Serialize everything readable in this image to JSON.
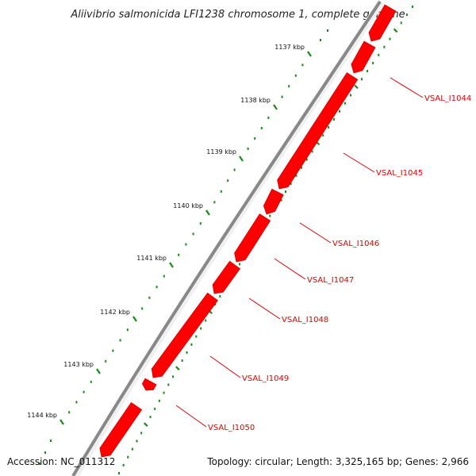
{
  "title": "Aliivibrio salmonicida LFI1238 chromosome 1, complete genome",
  "footer": {
    "accession": "Accession: NC_011312",
    "summary": "Topology: circular; Length: 3,325,165 bp; Genes: 2,966"
  },
  "colors": {
    "gene_fill": "#ff0000",
    "gene_stroke": "#d40000",
    "label_color": "#e00000",
    "backbone": "#8a8a8a",
    "tick_color": "#1a8a1a"
  },
  "ticks": [
    {
      "label": "1137 kbp",
      "kbp": 1137
    },
    {
      "label": "1138 kbp",
      "kbp": 1138
    },
    {
      "label": "1139 kbp",
      "kbp": 1139
    },
    {
      "label": "1140 kbp",
      "kbp": 1140
    },
    {
      "label": "1141 kbp",
      "kbp": 1141
    },
    {
      "label": "1142 kbp",
      "kbp": 1142
    },
    {
      "label": "1143 kbp",
      "kbp": 1143
    },
    {
      "label": "1144 kbp",
      "kbp": 1144
    }
  ],
  "genes": [
    {
      "label": "VSAL_I1044"
    },
    {
      "label": "VSAL_I1045"
    },
    {
      "label": "VSAL_I1046"
    },
    {
      "label": "VSAL_I1047"
    },
    {
      "label": "VSAL_I1048"
    },
    {
      "label": "VSAL_I1049"
    },
    {
      "label": "VSAL_I1050"
    }
  ]
}
